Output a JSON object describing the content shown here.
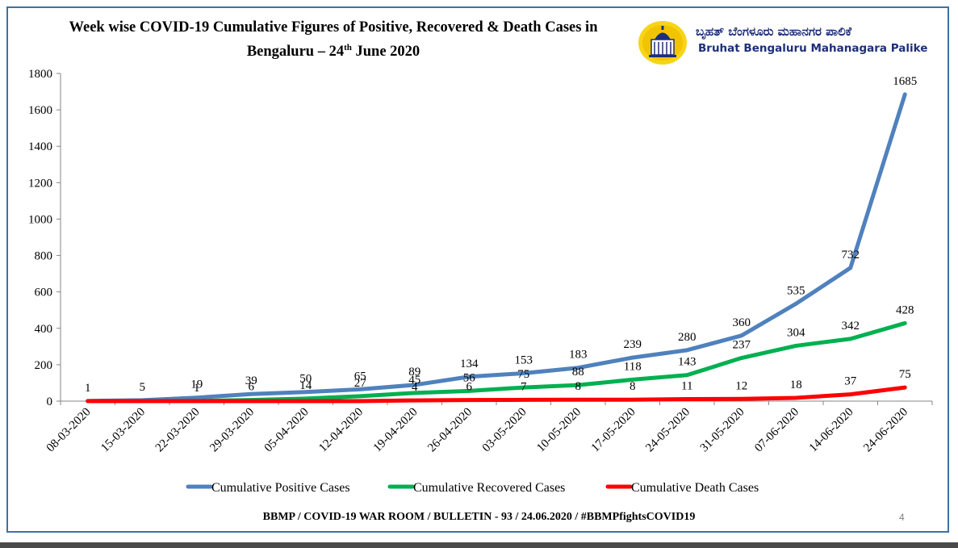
{
  "header": {
    "title_line1": "Week wise COVID-19 Cumulative Figures of Positive,  Recovered  & Death Cases in",
    "title_line2_pre": "Bengaluru – 24",
    "title_line2_sup": "th",
    "title_line2_post": " June 2020"
  },
  "logo": {
    "kannada_text": "ಬೃಹತ್ ಬೆಂಗಳೂರು ಮಹಾನಗರ ಪಾಲಿಕೆ",
    "english_text": "Bruhat Bengaluru Mahanagara Palike",
    "icon": "vidhana-soudha-emblem-icon"
  },
  "footer": {
    "bulletin": "BBMP / COVID-19 WAR ROOM / BULLETIN - 93 / 24.06.2020 / #BBMPfightsCOVID19",
    "page_number": "4"
  },
  "chart_data": {
    "type": "line",
    "title": "Week wise COVID-19 Cumulative Figures of Positive, Recovered & Death Cases in Bengaluru – 24th June 2020",
    "categories": [
      "08-03-2020",
      "15-03-2020",
      "22-03-2020",
      "29-03-2020",
      "05-04-2020",
      "12-04-2020",
      "19-04-2020",
      "26-04-2020",
      "03-05-2020",
      "10-05-2020",
      "17-05-2020",
      "24-05-2020",
      "31-05-2020",
      "07-06-2020",
      "14-06-2020",
      "24-06-2020"
    ],
    "ylim": [
      0,
      1800
    ],
    "yticks": [
      0,
      200,
      400,
      600,
      800,
      1000,
      1200,
      1400,
      1600,
      1800
    ],
    "grid": false,
    "legend_position": "bottom",
    "series": [
      {
        "name": "Cumulative Positive Cases",
        "color": "#4f81bd",
        "values": [
          1,
          5,
          19,
          39,
          50,
          65,
          89,
          134,
          153,
          183,
          239,
          280,
          360,
          535,
          732,
          1685
        ],
        "labels": [
          "1",
          "5",
          "19",
          "39",
          "50",
          "65",
          "89",
          "134",
          "153",
          "183",
          "239",
          "280",
          "360",
          "535",
          "732",
          "1685"
        ]
      },
      {
        "name": "Cumulative Recovered Cases",
        "color": "#00b050",
        "values": [
          0,
          0,
          1,
          6,
          14,
          27,
          45,
          56,
          75,
          88,
          118,
          143,
          237,
          304,
          342,
          428
        ],
        "labels": [
          "",
          "",
          "1",
          "6",
          "14",
          "27",
          "45",
          "56",
          "75",
          "88",
          "118",
          "143",
          "237",
          "304",
          "342",
          "428"
        ]
      },
      {
        "name": "Cumulative Death Cases",
        "color": "#ff0000",
        "values": [
          0,
          0,
          0,
          0,
          0,
          0,
          4,
          6,
          7,
          8,
          8,
          11,
          12,
          18,
          37,
          75
        ],
        "labels": [
          "",
          "",
          "",
          "",
          "",
          "",
          "4",
          "6",
          "7",
          "8",
          "8",
          "11",
          "12",
          "18",
          "37",
          "75"
        ]
      }
    ]
  }
}
